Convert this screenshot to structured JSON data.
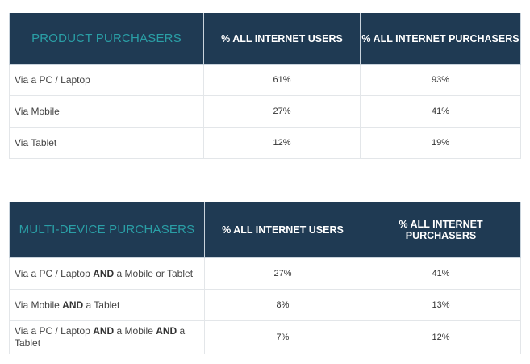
{
  "tables": [
    {
      "headers": [
        "PRODUCT PURCHASERS",
        "% ALL INTERNET USERS",
        "% ALL INTERNET PURCHASERS"
      ],
      "rows": [
        {
          "label": [
            {
              "text": "Via a PC / Laptop",
              "bold": false
            }
          ],
          "users": "61%",
          "purchasers": "93%"
        },
        {
          "label": [
            {
              "text": "Via Mobile",
              "bold": false
            }
          ],
          "users": "27%",
          "purchasers": "41%"
        },
        {
          "label": [
            {
              "text": "Via Tablet",
              "bold": false
            }
          ],
          "users": "12%",
          "purchasers": "19%"
        }
      ]
    },
    {
      "headers": [
        "MULTI-DEVICE PURCHASERS",
        "% ALL INTERNET USERS",
        "% ALL INTERNET PURCHASERS"
      ],
      "rows": [
        {
          "label": [
            {
              "text": "Via a PC / Laptop ",
              "bold": false
            },
            {
              "text": "AND",
              "bold": true
            },
            {
              "text": " a Mobile or Tablet",
              "bold": false
            }
          ],
          "users": "27%",
          "purchasers": "41%"
        },
        {
          "label": [
            {
              "text": "Via Mobile ",
              "bold": false
            },
            {
              "text": "AND",
              "bold": true
            },
            {
              "text": " a Tablet",
              "bold": false
            }
          ],
          "users": "8%",
          "purchasers": "13%"
        },
        {
          "label": [
            {
              "text": "Via a PC / Laptop ",
              "bold": false
            },
            {
              "text": "AND",
              "bold": true
            },
            {
              "text": " a Mobile ",
              "bold": false
            },
            {
              "text": "AND",
              "bold": true
            },
            {
              "text": " a Tablet",
              "bold": false
            }
          ],
          "users": "7%",
          "purchasers": "12%"
        }
      ]
    }
  ],
  "colors": {
    "header_bg": "#1f3a53",
    "header_accent": "#2a9fa6",
    "header_text": "#ffffff"
  }
}
